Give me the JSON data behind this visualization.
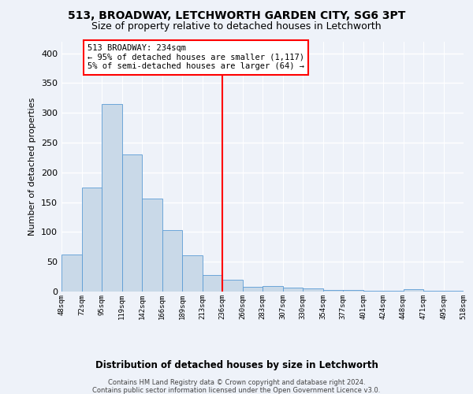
{
  "title1": "513, BROADWAY, LETCHWORTH GARDEN CITY, SG6 3PT",
  "title2": "Size of property relative to detached houses in Letchworth",
  "xlabel": "Distribution of detached houses by size in Letchworth",
  "ylabel": "Number of detached properties",
  "bar_values": [
    62,
    175,
    315,
    230,
    156,
    103,
    61,
    28,
    20,
    8,
    9,
    7,
    5,
    3,
    2,
    1,
    1,
    4,
    1,
    1
  ],
  "bar_labels": [
    "48sqm",
    "72sqm",
    "95sqm",
    "119sqm",
    "142sqm",
    "166sqm",
    "189sqm",
    "213sqm",
    "236sqm",
    "260sqm",
    "283sqm",
    "307sqm",
    "330sqm",
    "354sqm",
    "377sqm",
    "401sqm",
    "424sqm",
    "448sqm",
    "471sqm",
    "495sqm",
    "518sqm"
  ],
  "bar_color": "#c9d9e8",
  "bar_edge_color": "#5b9bd5",
  "vline_x": 8,
  "vline_color": "red",
  "annotation_text": "513 BROADWAY: 234sqm\n← 95% of detached houses are smaller (1,117)\n5% of semi-detached houses are larger (64) →",
  "annotation_box_color": "white",
  "annotation_box_edge_color": "red",
  "ylim": [
    0,
    420
  ],
  "yticks": [
    0,
    50,
    100,
    150,
    200,
    250,
    300,
    350,
    400
  ],
  "footer_line1": "Contains HM Land Registry data © Crown copyright and database right 2024.",
  "footer_line2": "Contains public sector information licensed under the Open Government Licence v3.0.",
  "background_color": "#eef2f9",
  "grid_color": "white",
  "title1_fontsize": 10,
  "title2_fontsize": 9,
  "annotation_fontsize": 7.5,
  "ylabel_fontsize": 8,
  "xlabel_fontsize": 8.5,
  "footer_fontsize": 6.0,
  "ytick_fontsize": 8,
  "xtick_fontsize": 6.5
}
